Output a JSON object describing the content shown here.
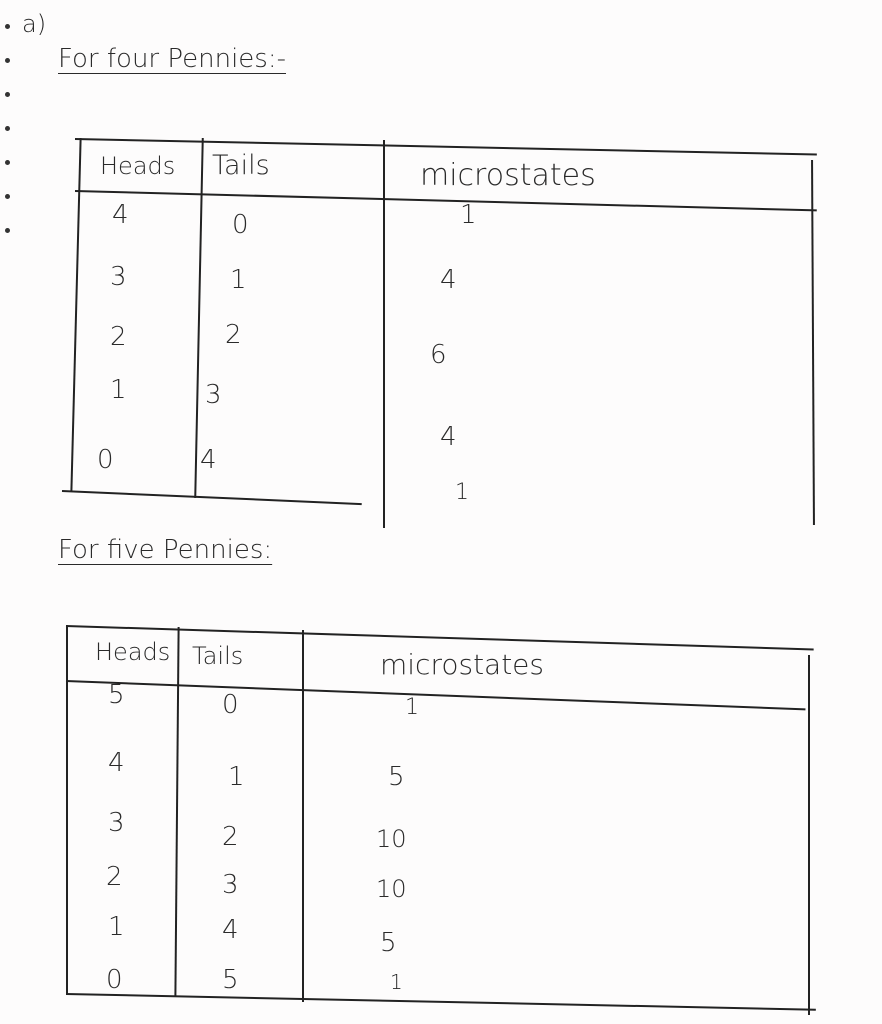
{
  "part_label": "a)",
  "sections": [
    {
      "title": "For four Pennies:-",
      "columns": [
        "Heads",
        "Tails",
        "microstates"
      ],
      "rows": [
        {
          "heads": "4",
          "tails": "0",
          "microstates": "1"
        },
        {
          "heads": "3",
          "tails": "1",
          "microstates": "4"
        },
        {
          "heads": "2",
          "tails": "2",
          "microstates": "6"
        },
        {
          "heads": "1",
          "tails": "3",
          "microstates": "4"
        },
        {
          "heads": "0",
          "tails": "4",
          "microstates": "1"
        }
      ]
    },
    {
      "title": "For five Pennies:",
      "columns": [
        "Heads",
        "Tails",
        "microstates"
      ],
      "rows": [
        {
          "heads": "5",
          "tails": "0",
          "microstates": "1"
        },
        {
          "heads": "4",
          "tails": "1",
          "microstates": "5"
        },
        {
          "heads": "3",
          "tails": "2",
          "microstates": "10"
        },
        {
          "heads": "2",
          "tails": "3",
          "microstates": "10"
        },
        {
          "heads": "1",
          "tails": "4",
          "microstates": "5"
        },
        {
          "heads": "0",
          "tails": "5",
          "microstates": "1"
        }
      ]
    }
  ]
}
